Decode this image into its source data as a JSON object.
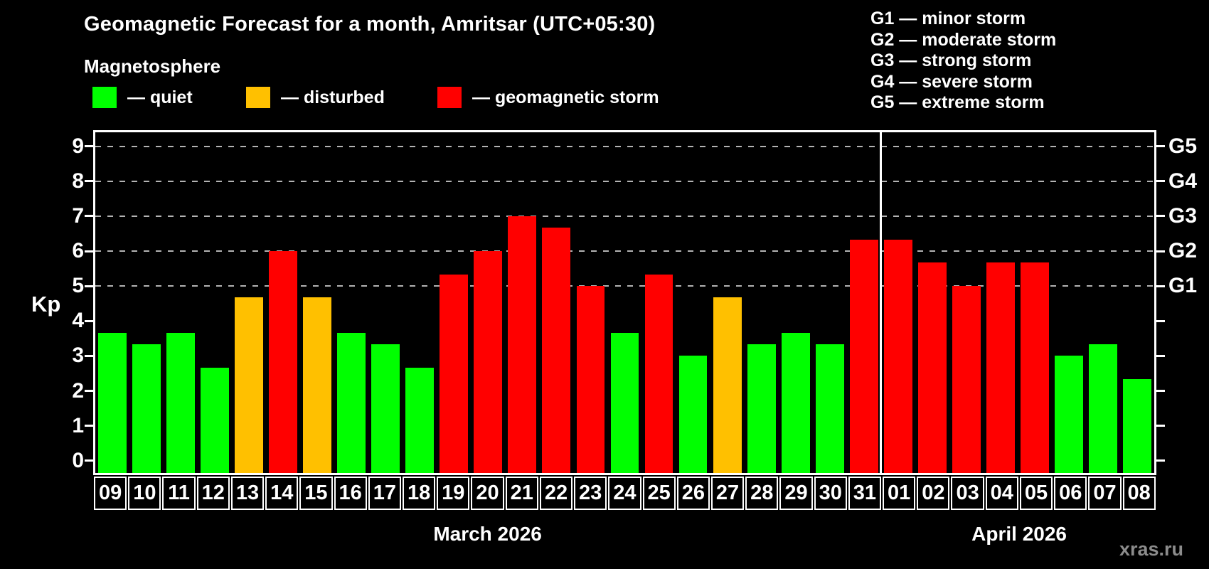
{
  "title": "Geomagnetic Forecast for a month, Amritsar (UTC+05:30)",
  "subtitle": "Magnetosphere",
  "condition_legend": [
    {
      "name": "quiet",
      "label": "— quiet",
      "color": "#00ff00"
    },
    {
      "name": "disturbed",
      "label": "— disturbed",
      "color": "#ffc000"
    },
    {
      "name": "storm",
      "label": "— geomagnetic storm",
      "color": "#ff0000"
    }
  ],
  "storm_scale_legend": [
    "G1 — minor storm",
    "G2 — moderate storm",
    "G3 — strong storm",
    "G4 — severe storm",
    "G5 — extreme storm"
  ],
  "watermark": "xras.ru",
  "chart_data": {
    "type": "bar",
    "title": "Geomagnetic Forecast for a month, Amritsar (UTC+05:30)",
    "ylabel": "Kp",
    "ylim": [
      0,
      9
    ],
    "yticks": [
      0,
      1,
      2,
      3,
      4,
      5,
      6,
      7,
      8,
      9
    ],
    "gridlines": [
      5,
      6,
      7,
      8,
      9
    ],
    "grid_style": "dashed",
    "right_axis": [
      {
        "kp": 5,
        "label": "G1"
      },
      {
        "kp": 6,
        "label": "G2"
      },
      {
        "kp": 7,
        "label": "G3"
      },
      {
        "kp": 8,
        "label": "G4"
      },
      {
        "kp": 9,
        "label": "G5"
      }
    ],
    "months": [
      {
        "label": "March 2026",
        "start_index": 0,
        "days": 23
      },
      {
        "label": "April 2026",
        "start_index": 23,
        "days": 8
      }
    ],
    "colors": {
      "quiet": "#00ff00",
      "disturbed": "#ffc000",
      "storm": "#ff0000"
    },
    "bars": [
      {
        "date": "09",
        "kp": 3.67,
        "level": "quiet"
      },
      {
        "date": "10",
        "kp": 3.33,
        "level": "quiet"
      },
      {
        "date": "11",
        "kp": 3.67,
        "level": "quiet"
      },
      {
        "date": "12",
        "kp": 2.67,
        "level": "quiet"
      },
      {
        "date": "13",
        "kp": 4.67,
        "level": "disturbed"
      },
      {
        "date": "14",
        "kp": 6.0,
        "level": "storm"
      },
      {
        "date": "15",
        "kp": 4.67,
        "level": "disturbed"
      },
      {
        "date": "16",
        "kp": 3.67,
        "level": "quiet"
      },
      {
        "date": "17",
        "kp": 3.33,
        "level": "quiet"
      },
      {
        "date": "18",
        "kp": 2.67,
        "level": "quiet"
      },
      {
        "date": "19",
        "kp": 5.33,
        "level": "storm"
      },
      {
        "date": "20",
        "kp": 6.0,
        "level": "storm"
      },
      {
        "date": "21",
        "kp": 7.0,
        "level": "storm"
      },
      {
        "date": "22",
        "kp": 6.67,
        "level": "storm"
      },
      {
        "date": "23",
        "kp": 5.0,
        "level": "storm"
      },
      {
        "date": "24",
        "kp": 3.67,
        "level": "quiet"
      },
      {
        "date": "25",
        "kp": 5.33,
        "level": "storm"
      },
      {
        "date": "26",
        "kp": 3.0,
        "level": "quiet"
      },
      {
        "date": "27",
        "kp": 4.67,
        "level": "disturbed"
      },
      {
        "date": "28",
        "kp": 3.33,
        "level": "quiet"
      },
      {
        "date": "29",
        "kp": 3.67,
        "level": "quiet"
      },
      {
        "date": "30",
        "kp": 3.33,
        "level": "quiet"
      },
      {
        "date": "31",
        "kp": 6.33,
        "level": "storm"
      },
      {
        "date": "01",
        "kp": 6.33,
        "level": "storm"
      },
      {
        "date": "02",
        "kp": 5.67,
        "level": "storm"
      },
      {
        "date": "03",
        "kp": 5.0,
        "level": "storm"
      },
      {
        "date": "04",
        "kp": 5.67,
        "level": "storm"
      },
      {
        "date": "05",
        "kp": 5.67,
        "level": "storm"
      },
      {
        "date": "06",
        "kp": 3.0,
        "level": "quiet"
      },
      {
        "date": "07",
        "kp": 3.33,
        "level": "quiet"
      },
      {
        "date": "08",
        "kp": 2.33,
        "level": "quiet"
      }
    ]
  }
}
